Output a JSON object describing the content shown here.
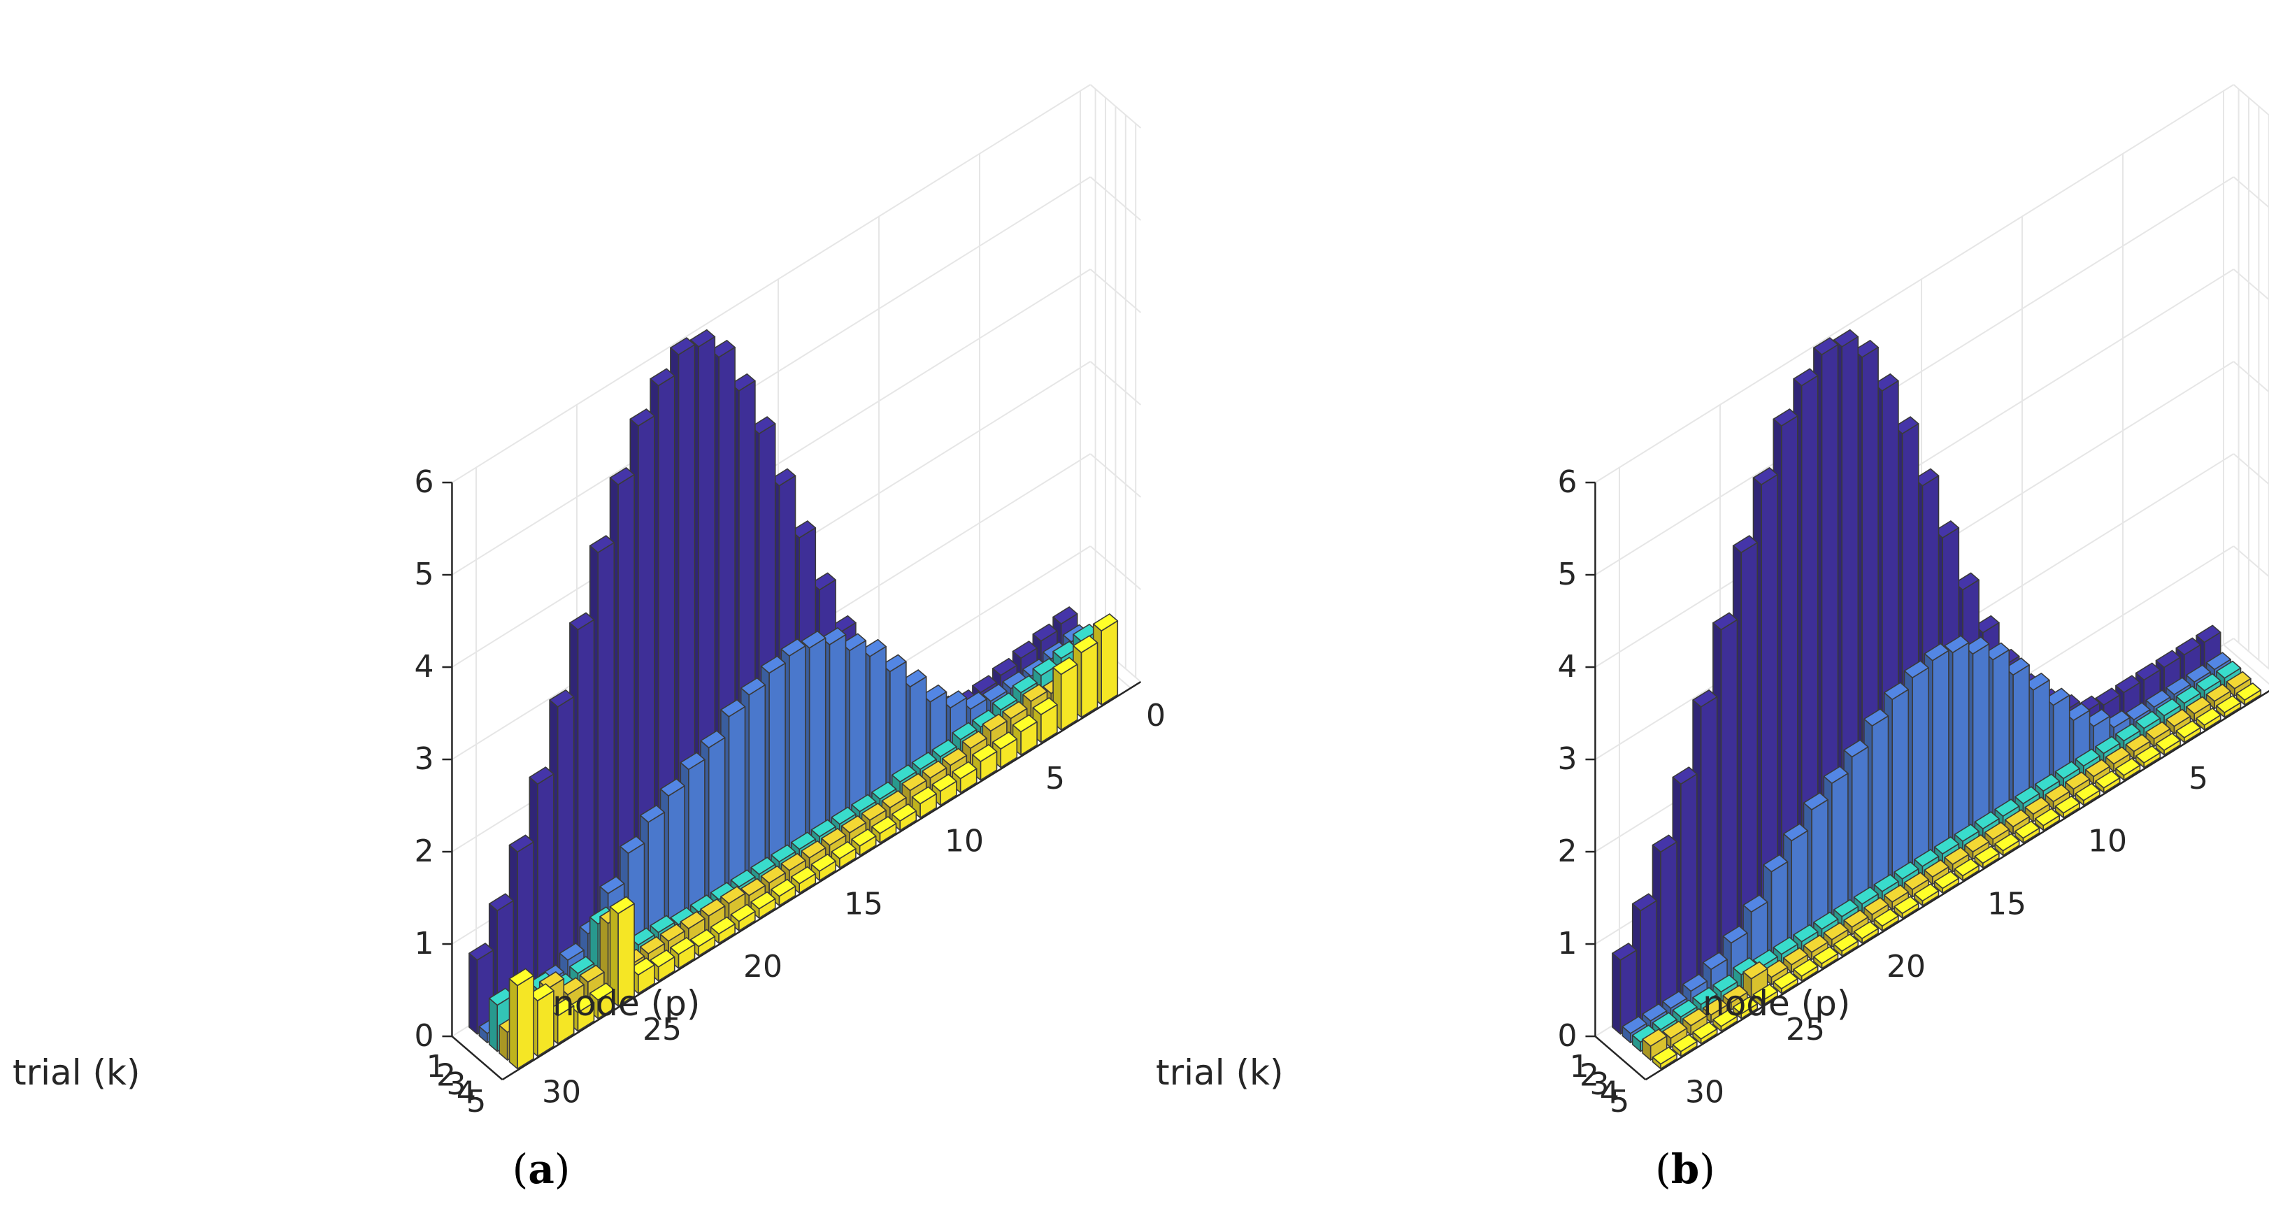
{
  "figure": {
    "panels": [
      {
        "id": "a",
        "caption_label": "a"
      },
      {
        "id": "b",
        "caption_label": "b"
      }
    ]
  },
  "colors": {
    "trial_1": "#3e2f97",
    "trial_2": "#4a78cc",
    "trial_3": "#33c4b6",
    "trial_4": "#d9c12e",
    "trial_5": "#f5e625",
    "edge": "#3a3a3a",
    "grid": "#e6e6e6"
  },
  "chart_data": [
    {
      "type": "bar3d",
      "panel": "a",
      "title": "",
      "xlabel": "node (p)",
      "ylabel": "trial (k)",
      "zlabel": "",
      "x_ticks": [
        0,
        5,
        10,
        15,
        20,
        25,
        30
      ],
      "y_ticks": [
        1,
        2,
        3,
        4,
        5
      ],
      "z_ticks": [
        0,
        1,
        2,
        3,
        4,
        5,
        6
      ],
      "zlim": [
        0,
        6
      ],
      "grid": true,
      "nodes": [
        1,
        2,
        3,
        4,
        5,
        6,
        7,
        8,
        9,
        10,
        11,
        12,
        13,
        14,
        15,
        16,
        17,
        18,
        19,
        20,
        21,
        22,
        23,
        24,
        25,
        26,
        27,
        28,
        29,
        30
      ],
      "series": [
        {
          "trial": 1,
          "values": [
            0.5,
            0.45,
            0.4,
            0.35,
            0.3,
            0.28,
            0.35,
            0.5,
            0.7,
            1.0,
            1.4,
            1.9,
            2.5,
            3.2,
            3.9,
            4.6,
            5.2,
            5.7,
            5.95,
            6.0,
            5.8,
            5.5,
            5.0,
            4.4,
            3.7,
            3.0,
            2.3,
            1.7,
            1.2,
            0.8
          ]
        },
        {
          "trial": 2,
          "values": [
            0.4,
            0.35,
            0.3,
            0.3,
            0.3,
            0.35,
            0.5,
            0.7,
            1.0,
            1.3,
            1.6,
            1.8,
            2.0,
            2.1,
            2.15,
            2.1,
            2.0,
            1.9,
            1.7,
            1.6,
            1.45,
            1.3,
            1.1,
            0.8,
            0.5,
            0.35,
            0.25,
            0.15,
            0.1,
            0.1
          ]
        },
        {
          "trial": 3,
          "values": [
            0.5,
            0.45,
            0.4,
            0.35,
            0.3,
            0.25,
            0.25,
            0.2,
            0.2,
            0.2,
            0.15,
            0.15,
            0.15,
            0.15,
            0.15,
            0.15,
            0.15,
            0.15,
            0.15,
            0.15,
            0.15,
            0.2,
            0.2,
            0.25,
            0.7,
            0.3,
            0.25,
            0.4,
            0.35,
            0.5
          ]
        },
        {
          "trial": 4,
          "values": [
            0.4,
            0.35,
            0.3,
            0.35,
            0.3,
            0.3,
            0.25,
            0.2,
            0.2,
            0.2,
            0.15,
            0.15,
            0.15,
            0.15,
            0.15,
            0.15,
            0.15,
            0.15,
            0.2,
            0.2,
            0.2,
            0.2,
            0.2,
            0.2,
            0.8,
            0.3,
            0.3,
            0.5,
            0.4,
            0.3
          ]
        },
        {
          "trial": 5,
          "values": [
            0.8,
            0.7,
            0.6,
            0.3,
            0.25,
            0.2,
            0.2,
            0.15,
            0.15,
            0.15,
            0.1,
            0.1,
            0.1,
            0.1,
            0.1,
            0.1,
            0.1,
            0.1,
            0.1,
            0.1,
            0.1,
            0.15,
            0.15,
            0.2,
            1.0,
            0.2,
            0.2,
            0.3,
            0.6,
            0.9
          ]
        }
      ]
    },
    {
      "type": "bar3d",
      "panel": "b",
      "title": "",
      "xlabel": "node (p)",
      "ylabel": "trial (k)",
      "zlabel": "",
      "x_ticks": [
        0,
        5,
        10,
        15,
        20,
        25,
        30
      ],
      "y_ticks": [
        1,
        2,
        3,
        4,
        5
      ],
      "z_ticks": [
        0,
        1,
        2,
        3,
        4,
        5,
        6
      ],
      "zlim": [
        0,
        6
      ],
      "grid": true,
      "nodes": [
        1,
        2,
        3,
        4,
        5,
        6,
        7,
        8,
        9,
        10,
        11,
        12,
        13,
        14,
        15,
        16,
        17,
        18,
        19,
        20,
        21,
        22,
        23,
        24,
        25,
        26,
        27,
        28,
        29,
        30
      ],
      "series": [
        {
          "trial": 1,
          "values": [
            0.3,
            0.3,
            0.3,
            0.3,
            0.3,
            0.3,
            0.35,
            0.5,
            0.7,
            1.0,
            1.4,
            1.9,
            2.5,
            3.2,
            3.9,
            4.6,
            5.2,
            5.7,
            5.95,
            6.0,
            5.8,
            5.5,
            5.0,
            4.4,
            3.7,
            3.0,
            2.3,
            1.7,
            1.2,
            0.8
          ]
        },
        {
          "trial": 2,
          "values": [
            0.1,
            0.1,
            0.1,
            0.1,
            0.1,
            0.15,
            0.3,
            0.5,
            0.8,
            1.1,
            1.4,
            1.7,
            1.9,
            2.05,
            2.1,
            2.05,
            1.95,
            1.8,
            1.6,
            1.45,
            1.3,
            1.1,
            0.9,
            0.6,
            0.4,
            0.25,
            0.15,
            0.1,
            0.1,
            0.1
          ]
        },
        {
          "trial": 3,
          "values": [
            0.1,
            0.1,
            0.1,
            0.1,
            0.1,
            0.1,
            0.1,
            0.1,
            0.1,
            0.1,
            0.1,
            0.1,
            0.1,
            0.1,
            0.1,
            0.1,
            0.1,
            0.1,
            0.1,
            0.1,
            0.1,
            0.1,
            0.1,
            0.1,
            0.15,
            0.1,
            0.1,
            0.1,
            0.1,
            0.1
          ]
        },
        {
          "trial": 4,
          "values": [
            0.08,
            0.08,
            0.08,
            0.08,
            0.08,
            0.08,
            0.08,
            0.08,
            0.08,
            0.08,
            0.08,
            0.08,
            0.08,
            0.08,
            0.08,
            0.08,
            0.08,
            0.08,
            0.08,
            0.08,
            0.08,
            0.08,
            0.08,
            0.08,
            0.2,
            0.08,
            0.08,
            0.1,
            0.1,
            0.15
          ]
        },
        {
          "trial": 5,
          "values": [
            0.05,
            0.05,
            0.05,
            0.05,
            0.05,
            0.05,
            0.05,
            0.05,
            0.05,
            0.05,
            0.05,
            0.05,
            0.05,
            0.05,
            0.05,
            0.05,
            0.05,
            0.05,
            0.05,
            0.05,
            0.05,
            0.05,
            0.05,
            0.05,
            0.05,
            0.05,
            0.05,
            0.05,
            0.05,
            0.05
          ]
        }
      ]
    }
  ]
}
